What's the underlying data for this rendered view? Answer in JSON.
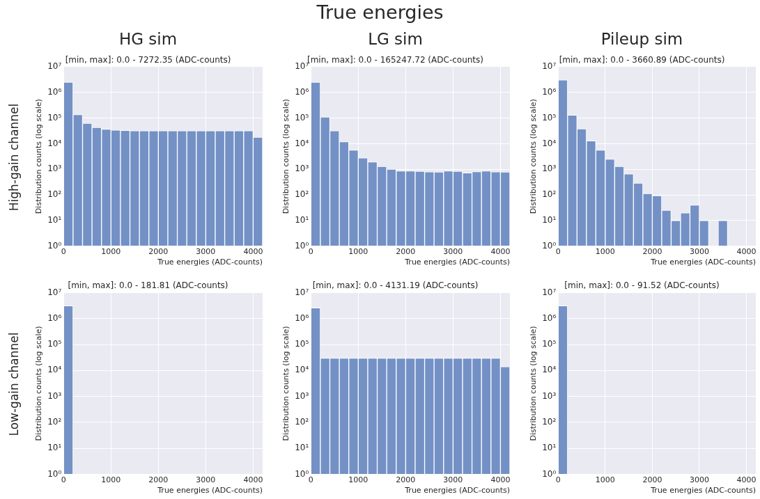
{
  "chart_data": [
    {
      "type": "histogram",
      "title": "HG sim",
      "subtitle": "[min, max]: 0.0 - 7272.35 (ADC-counts)",
      "xlabel": "True energies (ADC-counts)",
      "ylabel": "Distribution counts (log scale)",
      "annotations": [
        "True energies",
        "High-gain channel"
      ],
      "color": "#7491c6",
      "bins": [
        0,
        200,
        400,
        600,
        800,
        1000,
        1200,
        1400,
        1600,
        1800,
        2000,
        2200,
        2400,
        2600,
        2800,
        3000,
        3200,
        3400,
        3600,
        3800,
        4000,
        4200
      ],
      "values": [
        2500000,
        137000,
        63000,
        43000,
        37000,
        34000,
        33000,
        32000,
        32000,
        32000,
        32000,
        32000,
        32000,
        32000,
        32000,
        32000,
        32000,
        32000,
        32000,
        32000,
        18000
      ],
      "xlim": [
        0,
        4200
      ],
      "xticks": [
        0,
        1000,
        2000,
        3000,
        4000
      ],
      "ylim": [
        1,
        10000000
      ],
      "yticks": [
        {
          "value": 1,
          "label": "10⁰"
        },
        {
          "value": 10,
          "label": "10¹"
        },
        {
          "value": 100,
          "label": "10²"
        },
        {
          "value": 1000,
          "label": "10³"
        },
        {
          "value": 10000,
          "label": "10⁴"
        },
        {
          "value": 100000,
          "label": "10⁵"
        },
        {
          "value": 1000000,
          "label": "10⁶"
        },
        {
          "value": 10000000,
          "label": "10⁷"
        }
      ],
      "log": "y",
      "grid": true
    },
    {
      "type": "histogram",
      "title": "LG sim",
      "subtitle": "[min, max]: 0.0 - 165247.72 (ADC-counts)",
      "xlabel": "True energies (ADC-counts)",
      "ylabel": "Distribution counts (log scale)",
      "color": "#7491c6",
      "bins": [
        0,
        200,
        400,
        600,
        800,
        1000,
        1200,
        1400,
        1600,
        1800,
        2000,
        2200,
        2400,
        2600,
        2800,
        3000,
        3200,
        3400,
        3600,
        3800,
        4000,
        4200
      ],
      "values": [
        2500000,
        110000,
        32000,
        12000,
        5600,
        2800,
        1950,
        1300,
        1000,
        860,
        860,
        830,
        800,
        780,
        860,
        830,
        720,
        810,
        860,
        800,
        780
      ],
      "xlim": [
        0,
        4200
      ],
      "xticks": [
        0,
        1000,
        2000,
        3000,
        4000
      ],
      "ylim": [
        1,
        10000000
      ],
      "yticks": [
        {
          "value": 1,
          "label": "10⁰"
        },
        {
          "value": 10,
          "label": "10¹"
        },
        {
          "value": 100,
          "label": "10²"
        },
        {
          "value": 1000,
          "label": "10³"
        },
        {
          "value": 10000,
          "label": "10⁴"
        },
        {
          "value": 100000,
          "label": "10⁵"
        },
        {
          "value": 1000000,
          "label": "10⁶"
        },
        {
          "value": 10000000,
          "label": "10⁷"
        }
      ],
      "log": "y",
      "grid": true
    },
    {
      "type": "histogram",
      "title": "Pileup sim",
      "subtitle": "[min, max]: 0.0 - 3660.89 (ADC-counts)",
      "xlabel": "True energies (ADC-counts)",
      "ylabel": "Distribution counts (log scale)",
      "color": "#7491c6",
      "bins": [
        0,
        200,
        400,
        600,
        800,
        1000,
        1200,
        1400,
        1600,
        1800,
        2000,
        2200,
        2400,
        2600,
        2800,
        3000,
        3200,
        3400,
        3600,
        3800,
        4000,
        4200
      ],
      "values": [
        3100000,
        130000,
        38000,
        13000,
        5600,
        2500,
        1300,
        660,
        290,
        113,
        94,
        25,
        10,
        20,
        40,
        10,
        null,
        10,
        null,
        null,
        null
      ],
      "xlim": [
        0,
        4200
      ],
      "xticks": [
        0,
        1000,
        2000,
        3000,
        4000
      ],
      "ylim": [
        1,
        10000000
      ],
      "yticks": [
        {
          "value": 1,
          "label": "10⁰"
        },
        {
          "value": 10,
          "label": "10¹"
        },
        {
          "value": 100,
          "label": "10²"
        },
        {
          "value": 1000,
          "label": "10³"
        },
        {
          "value": 10000,
          "label": "10⁴"
        },
        {
          "value": 100000,
          "label": "10⁵"
        },
        {
          "value": 1000000,
          "label": "10⁶"
        },
        {
          "value": 10000000,
          "label": "10⁷"
        }
      ],
      "log": "y",
      "grid": true
    },
    {
      "type": "histogram",
      "subtitle": "[min, max]: 0.0 - 181.81 (ADC-counts)",
      "xlabel": "True energies (ADC-counts)",
      "ylabel": "Distribution counts (log scale)",
      "annotations": [
        "Low-gain channel"
      ],
      "color": "#7491c6",
      "bins": [
        0,
        200,
        400,
        600,
        800,
        1000,
        1200,
        1400,
        1600,
        1800,
        2000,
        2200,
        2400,
        2600,
        2800,
        3000,
        3200,
        3400,
        3600,
        3800,
        4000,
        4200
      ],
      "values": [
        3100000,
        null,
        null,
        null,
        null,
        null,
        null,
        null,
        null,
        null,
        null,
        null,
        null,
        null,
        null,
        null,
        null,
        null,
        null,
        null,
        null
      ],
      "xlim": [
        0,
        4200
      ],
      "xticks": [
        0,
        1000,
        2000,
        3000,
        4000
      ],
      "ylim": [
        1,
        10000000
      ],
      "yticks": [
        {
          "value": 1,
          "label": "10⁰"
        },
        {
          "value": 10,
          "label": "10¹"
        },
        {
          "value": 100,
          "label": "10²"
        },
        {
          "value": 1000,
          "label": "10³"
        },
        {
          "value": 10000,
          "label": "10⁴"
        },
        {
          "value": 100000,
          "label": "10⁵"
        },
        {
          "value": 1000000,
          "label": "10⁶"
        },
        {
          "value": 10000000,
          "label": "10⁷"
        }
      ],
      "log": "y",
      "grid": true
    },
    {
      "type": "histogram",
      "subtitle": "[min, max]: 0.0 - 4131.19 (ADC-counts)",
      "xlabel": "True energies (ADC-counts)",
      "ylabel": "Distribution counts (log scale)",
      "color": "#7491c6",
      "bins": [
        0,
        200,
        400,
        600,
        800,
        1000,
        1200,
        1400,
        1600,
        1800,
        2000,
        2200,
        2400,
        2600,
        2800,
        3000,
        3200,
        3400,
        3600,
        3800,
        4000,
        4200
      ],
      "values": [
        2600000,
        30000,
        30000,
        30000,
        30000,
        30000,
        30000,
        30000,
        30000,
        30000,
        30000,
        30000,
        30000,
        30000,
        30000,
        30000,
        30000,
        30000,
        30000,
        30000,
        14000
      ],
      "xlim": [
        0,
        4200
      ],
      "xticks": [
        0,
        1000,
        2000,
        3000,
        4000
      ],
      "ylim": [
        1,
        10000000
      ],
      "yticks": [
        {
          "value": 1,
          "label": "10⁰"
        },
        {
          "value": 10,
          "label": "10¹"
        },
        {
          "value": 100,
          "label": "10²"
        },
        {
          "value": 1000,
          "label": "10³"
        },
        {
          "value": 10000,
          "label": "10⁴"
        },
        {
          "value": 100000,
          "label": "10⁵"
        },
        {
          "value": 1000000,
          "label": "10⁶"
        },
        {
          "value": 10000000,
          "label": "10⁷"
        }
      ],
      "log": "y",
      "grid": true
    },
    {
      "type": "histogram",
      "subtitle": "[min, max]: 0.0 - 91.52 (ADC-counts)",
      "xlabel": "True energies (ADC-counts)",
      "ylabel": "Distribution counts (log scale)",
      "color": "#7491c6",
      "bins": [
        0,
        200,
        400,
        600,
        800,
        1000,
        1200,
        1400,
        1600,
        1800,
        2000,
        2200,
        2400,
        2600,
        2800,
        3000,
        3200,
        3400,
        3600,
        3800,
        4000,
        4200
      ],
      "values": [
        3100000,
        null,
        null,
        null,
        null,
        null,
        null,
        null,
        null,
        null,
        null,
        null,
        null,
        null,
        null,
        null,
        null,
        null,
        null,
        null,
        null
      ],
      "xlim": [
        0,
        4200
      ],
      "xticks": [
        0,
        1000,
        2000,
        3000,
        4000
      ],
      "ylim": [
        1,
        10000000
      ],
      "yticks": [
        {
          "value": 1,
          "label": "10⁰"
        },
        {
          "value": 10,
          "label": "10¹"
        },
        {
          "value": 100,
          "label": "10²"
        },
        {
          "value": 1000,
          "label": "10³"
        },
        {
          "value": 10000,
          "label": "10⁴"
        },
        {
          "value": 100000,
          "label": "10⁵"
        },
        {
          "value": 1000000,
          "label": "10⁶"
        },
        {
          "value": 10000000,
          "label": "10⁷"
        }
      ],
      "log": "y",
      "grid": true
    }
  ]
}
